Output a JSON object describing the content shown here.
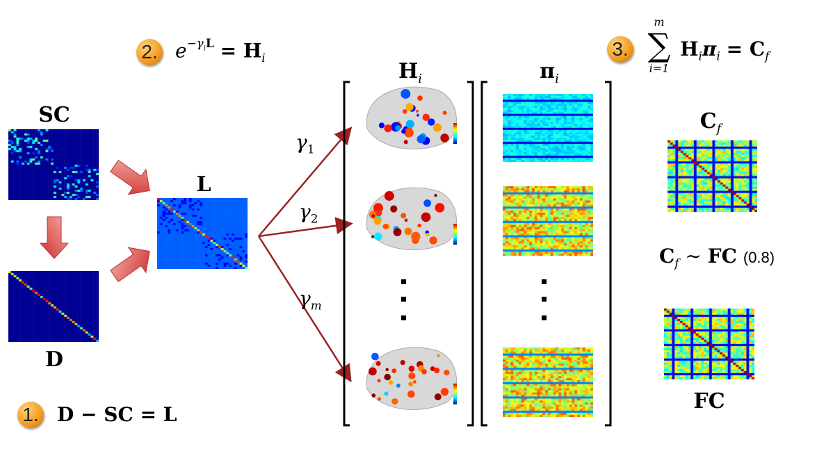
{
  "labels": {
    "sc": "SC",
    "d": "D",
    "l": "L",
    "h": "H",
    "h_sub": "i",
    "pi": "π",
    "pi_sub": "i",
    "cf": "C",
    "cf_sub": "f",
    "fc": "FC"
  },
  "gammas": [
    {
      "sym": "γ",
      "sub": "1"
    },
    {
      "sym": "γ",
      "sub": "2"
    },
    {
      "sym": "γ",
      "sub": "m"
    }
  ],
  "steps": [
    {
      "num": "1.",
      "formula": "D − SC = L"
    },
    {
      "num": "2.",
      "base": "e",
      "exp": "−γ",
      "exp_sub": "i",
      "exp_b": "L",
      "rhs": "= H",
      "rhs_sub": "i"
    },
    {
      "num": "3.",
      "sum": "∑",
      "sum_top": "m",
      "sum_bottom": "i=1",
      "term": "H",
      "term_sub": "i",
      "term2": "π",
      "term2_sub": "i",
      "rhs": "= C",
      "rhs_sub": "f"
    }
  ],
  "similarity": {
    "lhs": "C",
    "lhs_sub": "f",
    "op": "∼",
    "rhs": "FC",
    "value": "(0.8)"
  },
  "colors": {
    "arrow": "#d9534f",
    "line": "#9b2222",
    "badge": "#f39a1e",
    "matrix_dark": "#00008f",
    "matrix_L": "#0a5cff"
  },
  "icons": {
    "step_badge": "orange-circle-number",
    "flow": "red-block-arrow"
  }
}
